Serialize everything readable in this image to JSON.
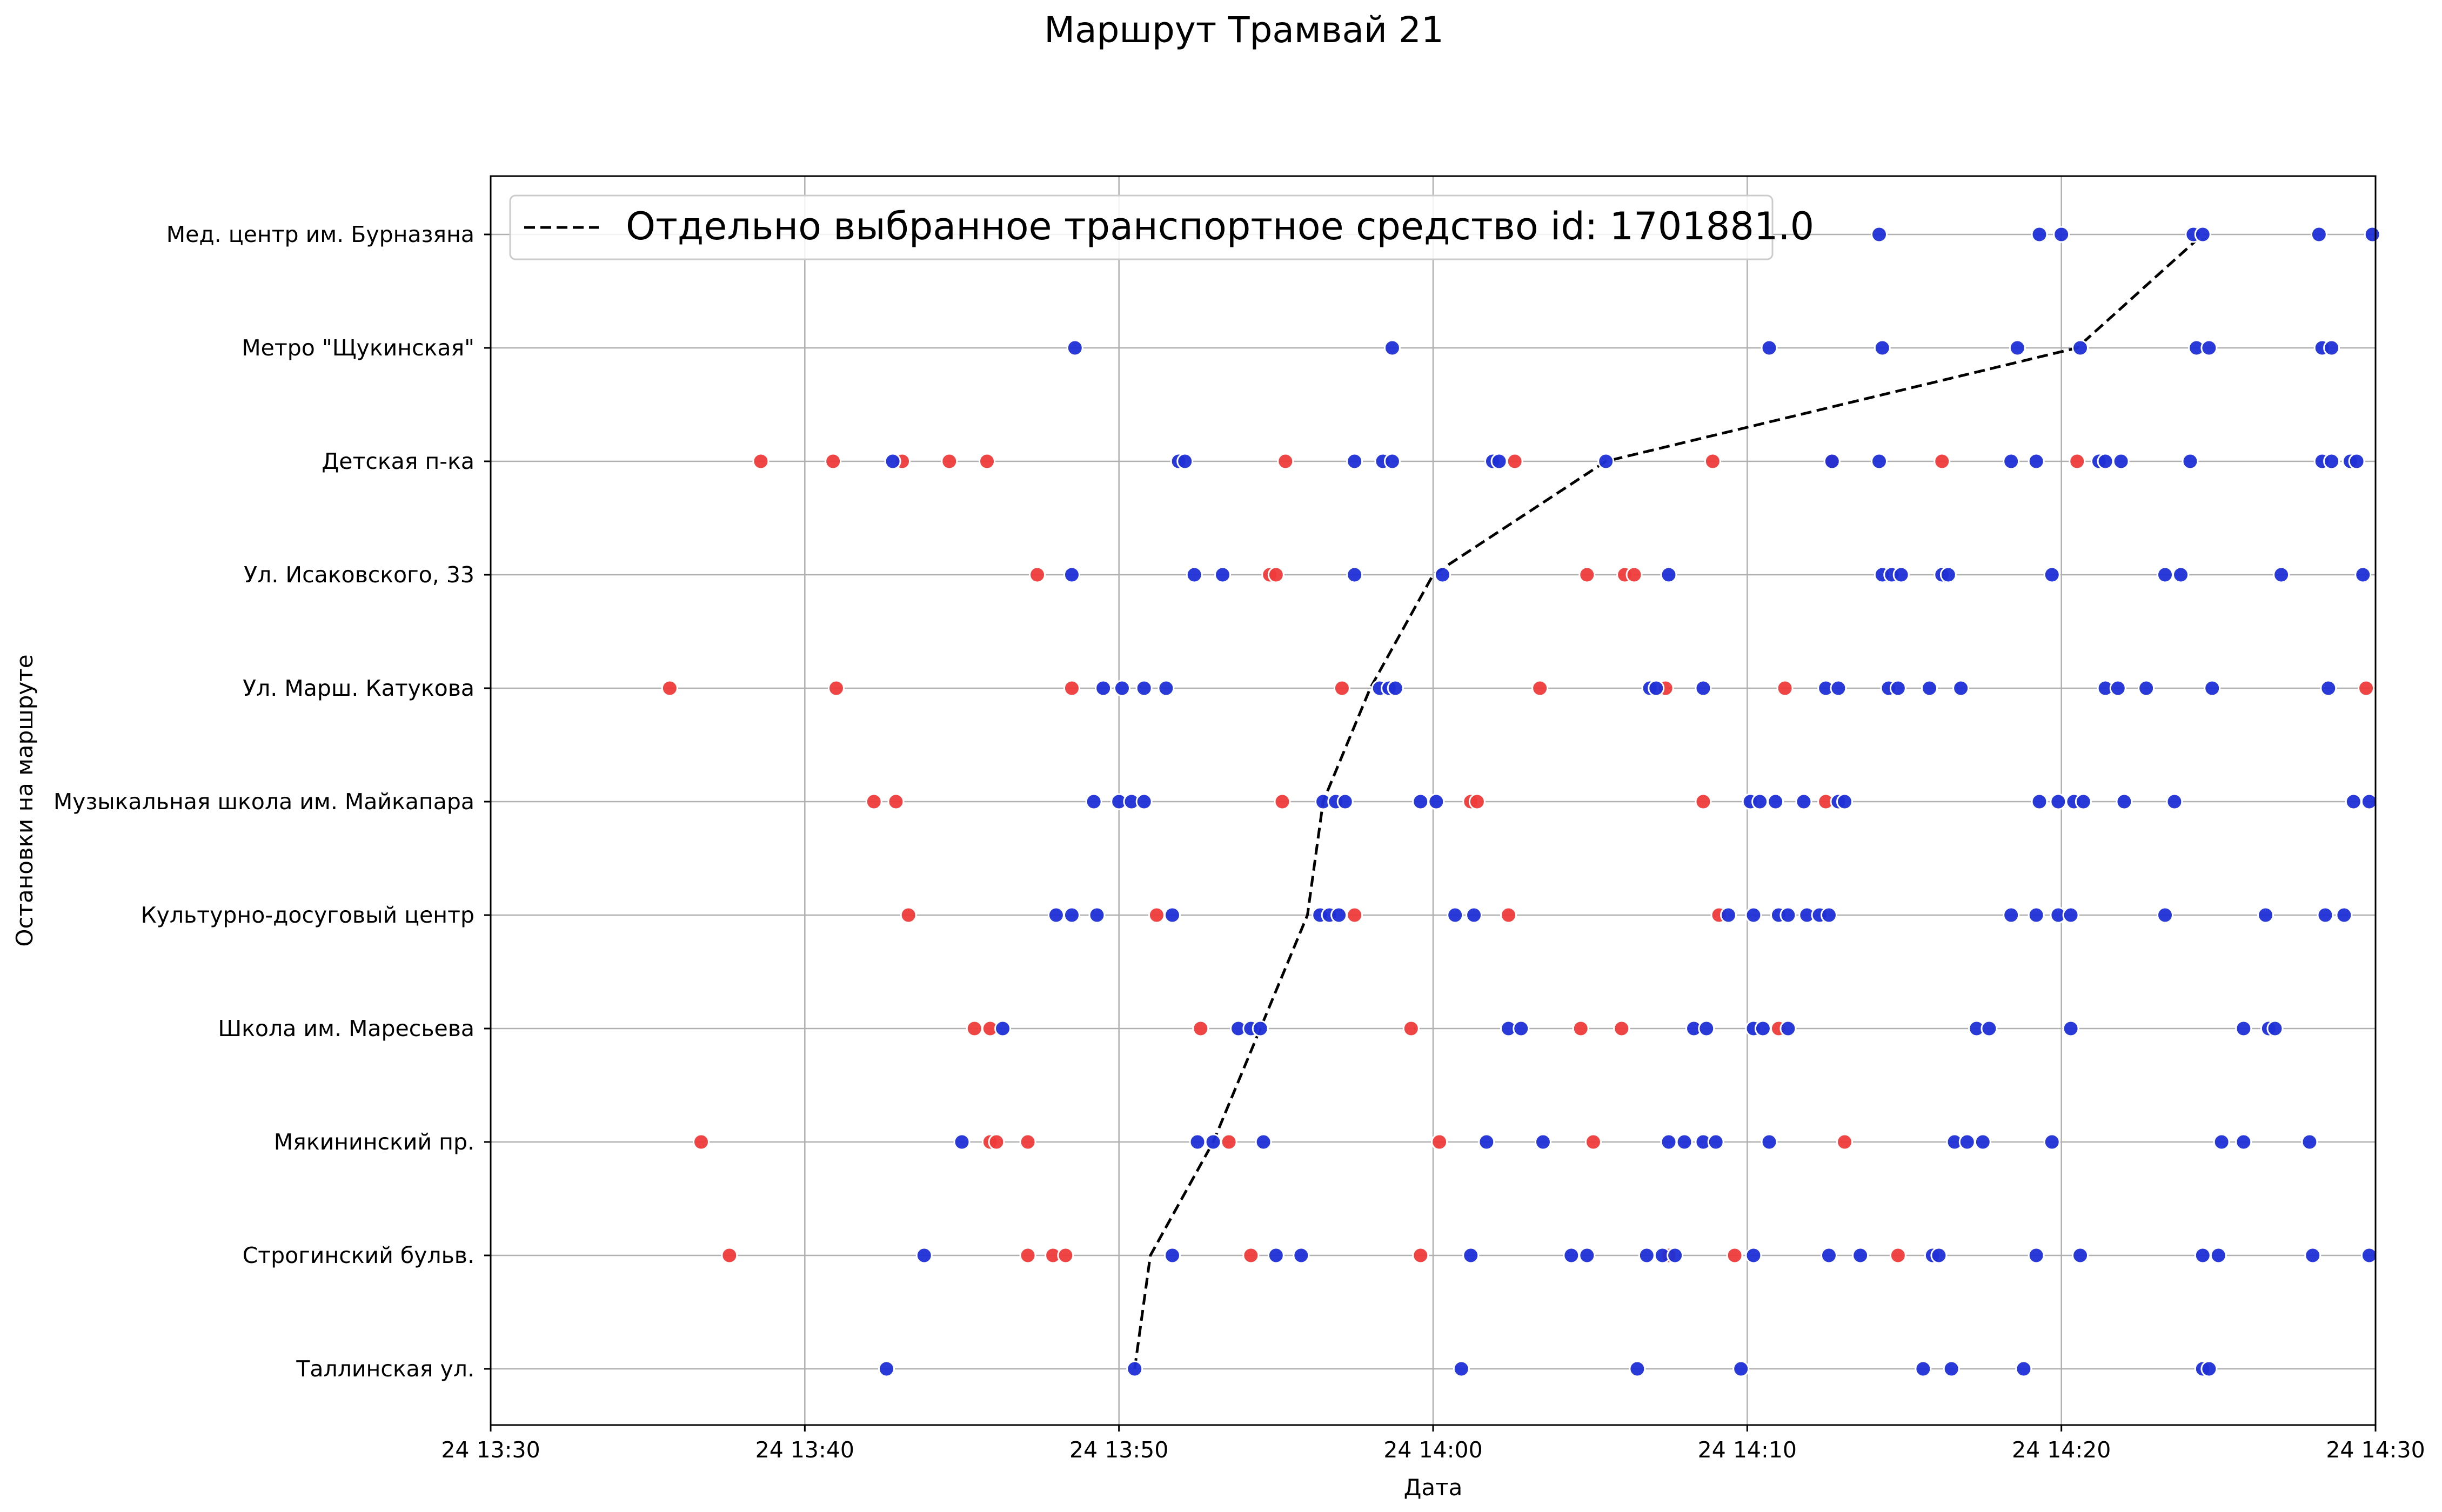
{
  "chart_data": {
    "type": "scatter",
    "title": "Маршрут Трамвай 21",
    "xlabel": "Дата",
    "ylabel": "Остановки на маршруте",
    "xlim": [
      "13:30",
      "14:30"
    ],
    "x_ticks": [
      "24 13:30",
      "24 13:40",
      "24 13:50",
      "24 14:00",
      "24 14:10",
      "24 14:20",
      "24 14:30"
    ],
    "grid": true,
    "legend_position": "top-left",
    "colors": {
      "blue": "#1f2fd6",
      "red": "#ef3b3b",
      "line": "#000000"
    },
    "stops": [
      "Таллинская ул.",
      "Строгинский бульв.",
      "Мякининский пр.",
      "Школа им. Маресьева",
      "Культурно-досуговый центр",
      "Музыкальная школа им. Майкапара",
      "Ул. Марш. Катукова",
      "Ул. Исаковского, 33",
      "Детская п-ка",
      "Метро \"Щукинская\"",
      "Мед. центр им. Бурназяна"
    ],
    "series": [
      {
        "name": "Отдельно выбранное транспортное средство id: 1701881.0",
        "style": "dashed",
        "points": [
          [
            "13:50.5",
            0
          ],
          [
            "13:51.0",
            1
          ],
          [
            "13:53.0",
            2
          ],
          [
            "13:54.5",
            3
          ],
          [
            "13:56.0",
            4
          ],
          [
            "13:56.5",
            5
          ],
          [
            "13:58.0",
            6
          ],
          [
            "14:00.0",
            7
          ],
          [
            "14:05.5",
            8
          ],
          [
            "14:20.5",
            9
          ],
          [
            "14:24.5",
            10
          ]
        ]
      }
    ],
    "observations": [
      {
        "stop": 0,
        "blue": [
          "13:42.6",
          "13:50.5",
          "14:00.9",
          "14:06.5",
          "14:09.8",
          "14:15.6",
          "14:16.5",
          "14:18.8",
          "14:24.5",
          "14:24.7"
        ],
        "red": []
      },
      {
        "stop": 1,
        "blue": [
          "13:43.8",
          "13:51.7",
          "13:55.0",
          "13:55.8",
          "14:01.2",
          "14:04.4",
          "14:04.9",
          "14:06.8",
          "14:07.3",
          "14:07.7",
          "14:10.2",
          "14:12.6",
          "14:13.6",
          "14:15.9",
          "14:16.1",
          "14:19.2",
          "14:20.6",
          "14:24.5",
          "14:25.0",
          "14:28.0",
          "14:29.8"
        ],
        "red": [
          "13:37.6",
          "13:47.1",
          "13:47.9",
          "13:48.3",
          "13:54.2",
          "13:59.6",
          "14:07.5",
          "14:09.6",
          "14:14.8"
        ]
      },
      {
        "stop": 2,
        "blue": [
          "13:45.0",
          "13:52.5",
          "13:53.0",
          "13:54.6",
          "14:01.7",
          "14:03.5",
          "14:07.5",
          "14:08.0",
          "14:08.6",
          "14:09.0",
          "14:10.7",
          "14:16.6",
          "14:17.0",
          "14:17.5",
          "14:19.7",
          "14:25.1",
          "14:25.8",
          "14:27.9"
        ],
        "red": [
          "13:36.7",
          "13:45.9",
          "13:46.1",
          "13:47.1",
          "13:53.5",
          "14:00.2",
          "14:05.1",
          "14:13.1"
        ]
      },
      {
        "stop": 3,
        "blue": [
          "13:46.3",
          "13:53.8",
          "13:54.2",
          "13:54.5",
          "14:02.4",
          "14:02.8",
          "14:08.3",
          "14:08.7",
          "14:10.2",
          "14:10.5",
          "14:11.3",
          "14:17.3",
          "14:17.7",
          "14:20.3",
          "14:25.8",
          "14:26.6",
          "14:26.8"
        ],
        "red": [
          "13:45.4",
          "13:45.9",
          "13:52.6",
          "13:59.3",
          "14:04.7",
          "14:06.0",
          "14:11.0"
        ]
      },
      {
        "stop": 4,
        "blue": [
          "13:48.0",
          "13:48.5",
          "13:49.3",
          "13:51.7",
          "13:56.4",
          "13:56.7",
          "13:57.0",
          "14:00.7",
          "14:01.3",
          "14:09.4",
          "14:10.2",
          "14:11.0",
          "14:11.3",
          "14:11.9",
          "14:12.3",
          "14:12.6",
          "14:18.4",
          "14:19.2",
          "14:19.9",
          "14:20.3",
          "14:23.3",
          "14:26.5",
          "14:28.4",
          "14:29.0"
        ],
        "red": [
          "13:43.3",
          "13:51.2",
          "13:57.5",
          "14:02.4",
          "14:09.1"
        ]
      },
      {
        "stop": 5,
        "blue": [
          "13:49.2",
          "13:50.0",
          "13:50.4",
          "13:50.8",
          "13:56.5",
          "13:56.9",
          "13:57.2",
          "13:59.6",
          "14:00.1",
          "14:10.1",
          "14:10.4",
          "14:10.9",
          "14:11.8",
          "14:12.9",
          "14:13.1",
          "14:19.3",
          "14:19.9",
          "14:20.4",
          "14:20.7",
          "14:22.0",
          "14:23.6",
          "14:29.3",
          "14:29.8"
        ],
        "red": [
          "13:42.2",
          "13:42.9",
          "13:55.2",
          "14:01.2",
          "14:01.4",
          "14:08.6",
          "14:12.5"
        ]
      },
      {
        "stop": 6,
        "blue": [
          "13:49.5",
          "13:50.1",
          "13:50.8",
          "13:51.5",
          "13:58.3",
          "13:58.6",
          "13:58.8",
          "14:06.9",
          "14:07.1",
          "14:08.6",
          "14:12.5",
          "14:12.9",
          "14:14.5",
          "14:14.8",
          "14:15.8",
          "14:16.8",
          "14:21.4",
          "14:21.8",
          "14:22.7",
          "14:24.8",
          "14:28.5"
        ],
        "red": [
          "13:35.7",
          "13:41.0",
          "13:48.5",
          "13:57.1",
          "14:03.4",
          "14:07.4",
          "14:11.2",
          "14:29.7"
        ]
      },
      {
        "stop": 7,
        "blue": [
          "13:48.5",
          "13:52.4",
          "13:53.3",
          "13:57.5",
          "14:00.3",
          "14:07.5",
          "14:14.3",
          "14:14.6",
          "14:14.9",
          "14:16.2",
          "14:16.4",
          "14:19.7",
          "14:23.3",
          "14:23.8",
          "14:27.0",
          "14:29.6"
        ],
        "red": [
          "13:47.4",
          "13:54.8",
          "13:55.0",
          "14:04.9",
          "14:06.1",
          "14:06.4"
        ]
      },
      {
        "stop": 8,
        "blue": [
          "13:42.8",
          "13:51.9",
          "13:52.1",
          "13:57.5",
          "13:58.4",
          "13:58.7",
          "14:01.9",
          "14:02.1",
          "14:05.5",
          "14:12.7",
          "14:14.2",
          "14:18.4",
          "14:19.2",
          "14:21.2",
          "14:21.4",
          "14:21.9",
          "14:24.1",
          "14:28.3",
          "14:28.6",
          "14:29.2",
          "14:29.4"
        ],
        "red": [
          "13:38.6",
          "13:40.9",
          "13:43.1",
          "13:44.6",
          "13:45.8",
          "13:55.3",
          "14:02.6",
          "14:08.9",
          "14:12.7",
          "14:16.2",
          "14:20.5"
        ]
      },
      {
        "stop": 9,
        "blue": [
          "13:48.6",
          "13:58.7",
          "14:10.7",
          "14:14.3",
          "14:18.6",
          "14:20.6",
          "14:24.3",
          "14:24.7",
          "14:28.3",
          "14:28.6"
        ],
        "red": []
      },
      {
        "stop": 10,
        "blue": [
          "14:14.2",
          "14:19.3",
          "14:20.0",
          "14:24.2",
          "14:24.5",
          "14:28.2",
          "14:29.9"
        ],
        "red": []
      }
    ]
  }
}
